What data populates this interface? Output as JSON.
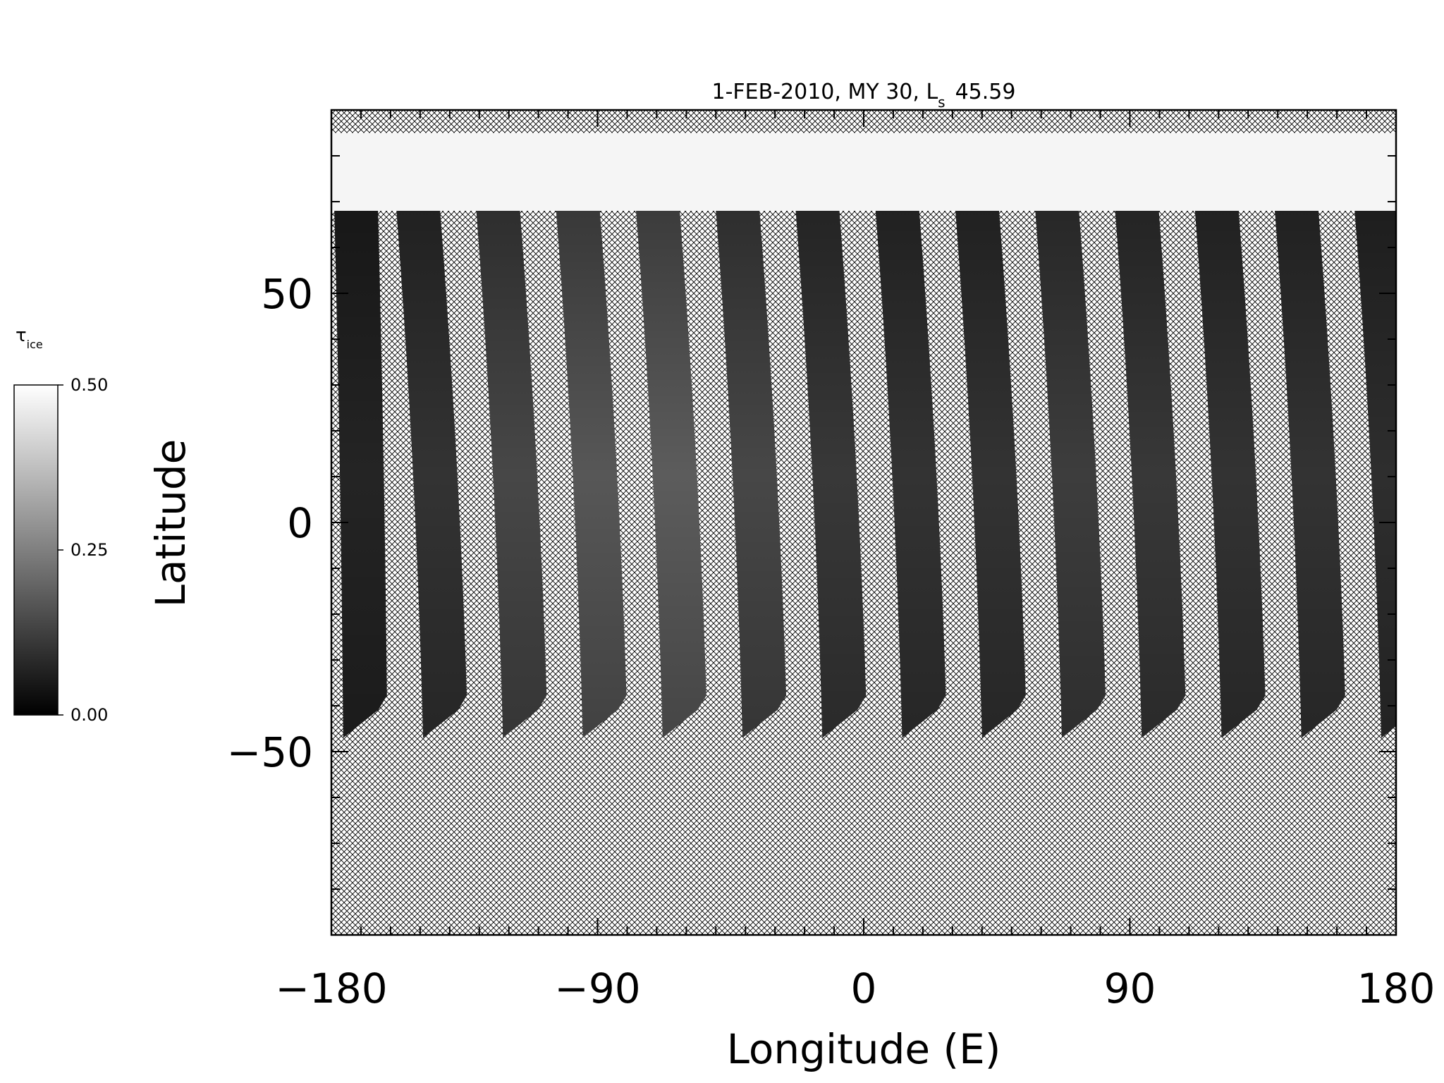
{
  "chart_data": {
    "type": "heatmap",
    "title": "1-FEB-2010, MY 30,  L",
    "title_subscript": "s",
    "title_value": "45.59",
    "xlabel": "Longitude (E)",
    "ylabel": "Latitude",
    "xlim": [
      -180,
      180
    ],
    "ylim": [
      -90,
      90
    ],
    "x_ticks": [
      {
        "value": -180,
        "label": "−180"
      },
      {
        "value": -90,
        "label": "−90"
      },
      {
        "value": 0,
        "label": "0"
      },
      {
        "value": 90,
        "label": "90"
      },
      {
        "value": 180,
        "label": "180"
      }
    ],
    "y_ticks": [
      {
        "value": -50,
        "label": "−50"
      },
      {
        "value": 0,
        "label": "0"
      },
      {
        "value": 50,
        "label": "50"
      }
    ],
    "x_minor_step": 10,
    "y_minor_step": 10,
    "colorbar": {
      "label": "τ",
      "label_subscript": "ice",
      "min": 0.0,
      "max": 0.5,
      "ticks": [
        {
          "value": 0.5,
          "label": "0.50"
        },
        {
          "value": 0.25,
          "label": "0.25"
        },
        {
          "value": 0.0,
          "label": "0.00"
        }
      ],
      "colors": [
        "#000000",
        "#ffffff"
      ]
    },
    "no_data_fill": "crosshatch",
    "north_cap": {
      "lat_low": 68,
      "lat_high": 85,
      "value": 0.48
    },
    "swaths": [
      {
        "lon_north": -179,
        "lon_south": -176,
        "lat_north": 68,
        "lat_south": -47,
        "value": 0.07
      },
      {
        "lon_north": -158,
        "lon_south": -149,
        "lat_north": 68,
        "lat_south": -47,
        "value": 0.1
      },
      {
        "lon_north": -131,
        "lon_south": -122,
        "lat_north": 68,
        "lat_south": -47,
        "value": 0.14
      },
      {
        "lon_north": -104,
        "lon_south": -95,
        "lat_north": 68,
        "lat_south": -47,
        "value": 0.17
      },
      {
        "lon_north": -77,
        "lon_south": -68,
        "lat_north": 68,
        "lat_south": -47,
        "value": 0.18
      },
      {
        "lon_north": -50,
        "lon_south": -41,
        "lat_north": 68,
        "lat_south": -47,
        "value": 0.14
      },
      {
        "lon_north": -23,
        "lon_south": -14,
        "lat_north": 68,
        "lat_south": -47,
        "value": 0.11
      },
      {
        "lon_north": 4,
        "lon_south": 13,
        "lat_north": 68,
        "lat_south": -47,
        "value": 0.1
      },
      {
        "lon_north": 31,
        "lon_south": 40,
        "lat_north": 68,
        "lat_south": -47,
        "value": 0.1
      },
      {
        "lon_north": 58,
        "lon_south": 67,
        "lat_north": 68,
        "lat_south": -47,
        "value": 0.12
      },
      {
        "lon_north": 85,
        "lon_south": 94,
        "lat_north": 68,
        "lat_south": -47,
        "value": 0.11
      },
      {
        "lon_north": 112,
        "lon_south": 121,
        "lat_north": 68,
        "lat_south": -47,
        "value": 0.1
      },
      {
        "lon_north": 139,
        "lon_south": 148,
        "lat_north": 68,
        "lat_south": -47,
        "value": 0.1
      },
      {
        "lon_north": 166,
        "lon_south": 175,
        "lat_north": 68,
        "lat_south": -47,
        "value": 0.09
      }
    ]
  }
}
